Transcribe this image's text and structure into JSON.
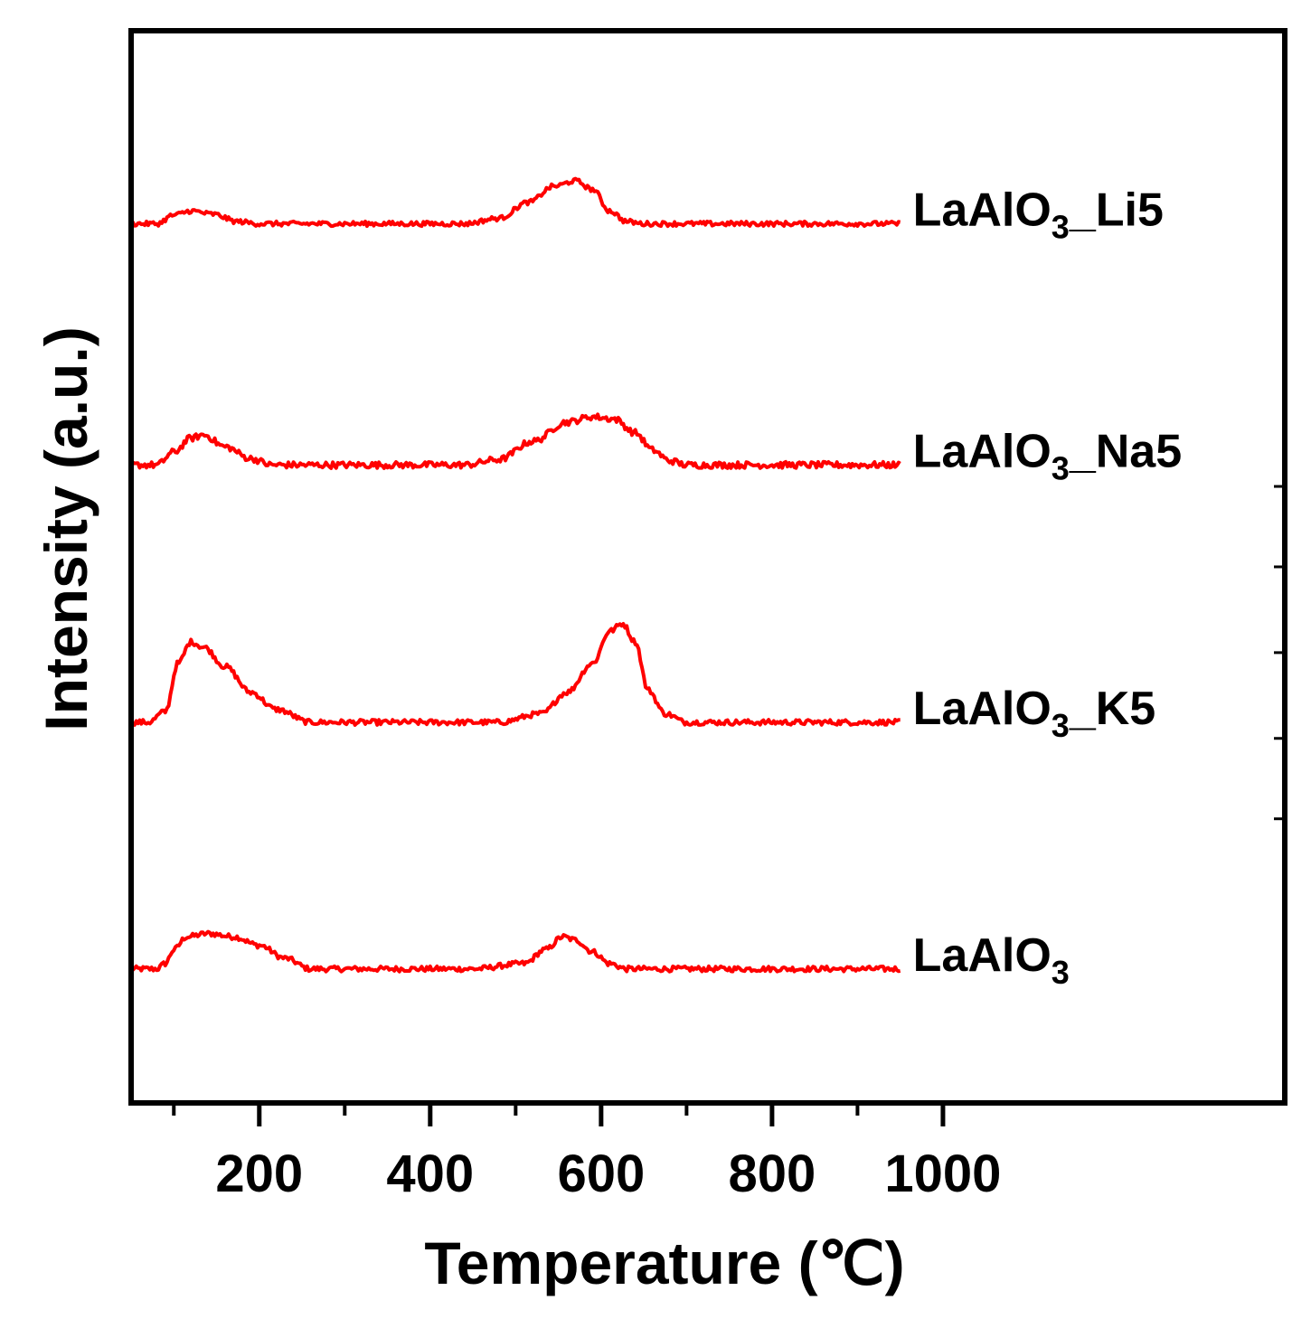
{
  "chart_data": {
    "type": "line",
    "title": "",
    "xlabel": "Temperature (℃)",
    "ylabel": "Intensity (a.u.)",
    "xlim": [
      50,
      1400
    ],
    "x_ticks": [
      200,
      400,
      600,
      800,
      1000
    ],
    "x_tick_labels": [
      "200",
      "400",
      "600",
      "800",
      "1000"
    ],
    "x_minor_ticks": [
      100,
      300,
      500,
      700,
      900
    ],
    "right_axis_ticks": [
      0.575,
      0.5,
      0.42,
      0.34,
      0.265
    ],
    "y_ticks_shown": false,
    "grid": false,
    "line_color": "#ff0000",
    "series": [
      {
        "name": "LaAlO3",
        "label_main": "LaAlO",
        "label_sub": "3",
        "label_rest": "",
        "baseline": 0.125,
        "noise": 0.0025,
        "points": [
          [
            50,
            0
          ],
          [
            80,
            0
          ],
          [
            90,
            0.005
          ],
          [
            100,
            0.018
          ],
          [
            115,
            0.03
          ],
          [
            140,
            0.033
          ],
          [
            170,
            0.03
          ],
          [
            200,
            0.022
          ],
          [
            230,
            0.01
          ],
          [
            260,
            0
          ],
          [
            450,
            0
          ],
          [
            510,
            0.005
          ],
          [
            535,
            0.018
          ],
          [
            555,
            0.03
          ],
          [
            570,
            0.027
          ],
          [
            590,
            0.016
          ],
          [
            610,
            0.005
          ],
          [
            630,
            0
          ],
          [
            950,
            0
          ]
        ]
      },
      {
        "name": "LaAlO3_K5",
        "label_main": "LaAlO",
        "label_sub": "3",
        "label_rest": "_K5",
        "baseline": 0.355,
        "noise": 0.0025,
        "points": [
          [
            50,
            0
          ],
          [
            70,
            0
          ],
          [
            90,
            0.01
          ],
          [
            105,
            0.055
          ],
          [
            120,
            0.075
          ],
          [
            135,
            0.07
          ],
          [
            160,
            0.052
          ],
          [
            190,
            0.028
          ],
          [
            220,
            0.012
          ],
          [
            260,
            0
          ],
          [
            480,
            0
          ],
          [
            530,
            0.008
          ],
          [
            560,
            0.028
          ],
          [
            590,
            0.055
          ],
          [
            610,
            0.085
          ],
          [
            625,
            0.092
          ],
          [
            640,
            0.075
          ],
          [
            655,
            0.03
          ],
          [
            675,
            0.008
          ],
          [
            700,
            0
          ],
          [
            950,
            0
          ]
        ]
      },
      {
        "name": "LaAlO3_Na5",
        "label_main": "LaAlO",
        "label_sub": "3",
        "label_rest": "_Na5",
        "baseline": 0.595,
        "noise": 0.003,
        "points": [
          [
            50,
            0
          ],
          [
            80,
            0
          ],
          [
            100,
            0.012
          ],
          [
            120,
            0.025
          ],
          [
            135,
            0.028
          ],
          [
            160,
            0.017
          ],
          [
            190,
            0.006
          ],
          [
            215,
            0
          ],
          [
            440,
            0
          ],
          [
            480,
            0.005
          ],
          [
            520,
            0.022
          ],
          [
            560,
            0.04
          ],
          [
            590,
            0.045
          ],
          [
            615,
            0.043
          ],
          [
            640,
            0.03
          ],
          [
            660,
            0.014
          ],
          [
            680,
            0.004
          ],
          [
            700,
            0
          ],
          [
            950,
            0
          ]
        ]
      },
      {
        "name": "LaAlO3_Li5",
        "label_main": "LaAlO",
        "label_sub": "3",
        "label_rest": "_Li5",
        "baseline": 0.82,
        "noise": 0.0022,
        "points": [
          [
            50,
            0
          ],
          [
            80,
            0
          ],
          [
            100,
            0.008
          ],
          [
            120,
            0.012
          ],
          [
            145,
            0.009
          ],
          [
            175,
            0.002
          ],
          [
            200,
            0
          ],
          [
            440,
            0
          ],
          [
            480,
            0.005
          ],
          [
            515,
            0.02
          ],
          [
            545,
            0.035
          ],
          [
            570,
            0.04
          ],
          [
            590,
            0.032
          ],
          [
            610,
            0.012
          ],
          [
            630,
            0.002
          ],
          [
            650,
            0
          ],
          [
            950,
            0
          ]
        ]
      }
    ]
  }
}
